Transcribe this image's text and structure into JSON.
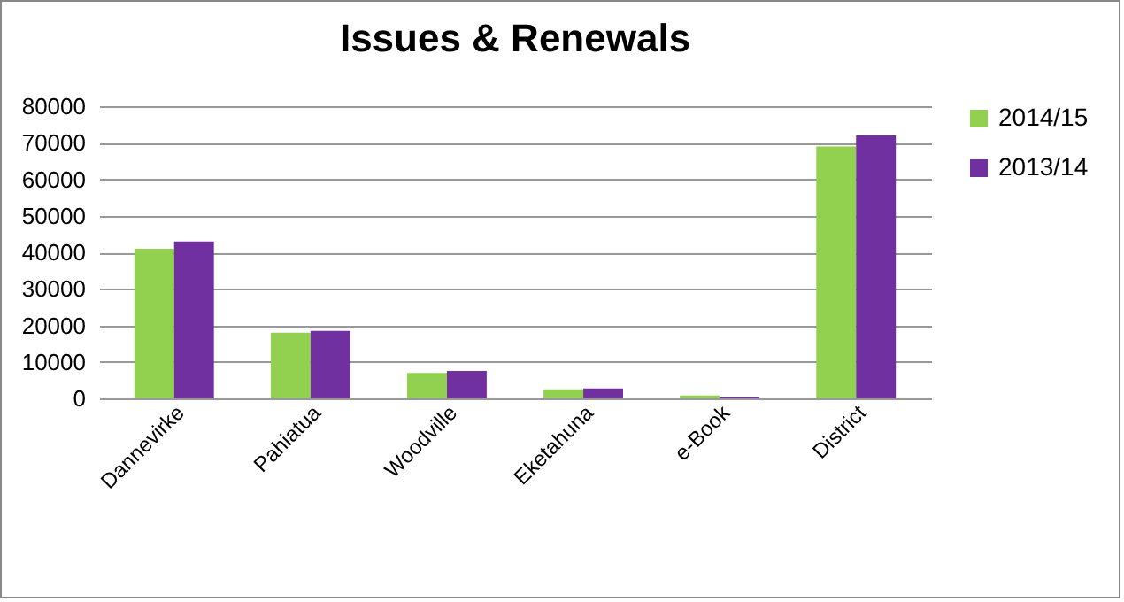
{
  "chart_data": {
    "type": "bar",
    "title": "Issues & Renewals",
    "categories": [
      "Dannevirke",
      "Pahiatua",
      "Woodville",
      "Eketahuna",
      "e-Book",
      "District"
    ],
    "series": [
      {
        "name": "2014/15",
        "color": "#92d050",
        "values": [
          41000,
          18000,
          7000,
          2500,
          800,
          69000
        ]
      },
      {
        "name": "2013/14",
        "color": "#7030a0",
        "values": [
          43000,
          18500,
          7500,
          2700,
          400,
          72000
        ]
      }
    ],
    "ylim": [
      0,
      80000
    ],
    "yticks": [
      0,
      10000,
      20000,
      30000,
      40000,
      50000,
      60000,
      70000,
      80000
    ],
    "grid": "y",
    "legend": "right"
  }
}
